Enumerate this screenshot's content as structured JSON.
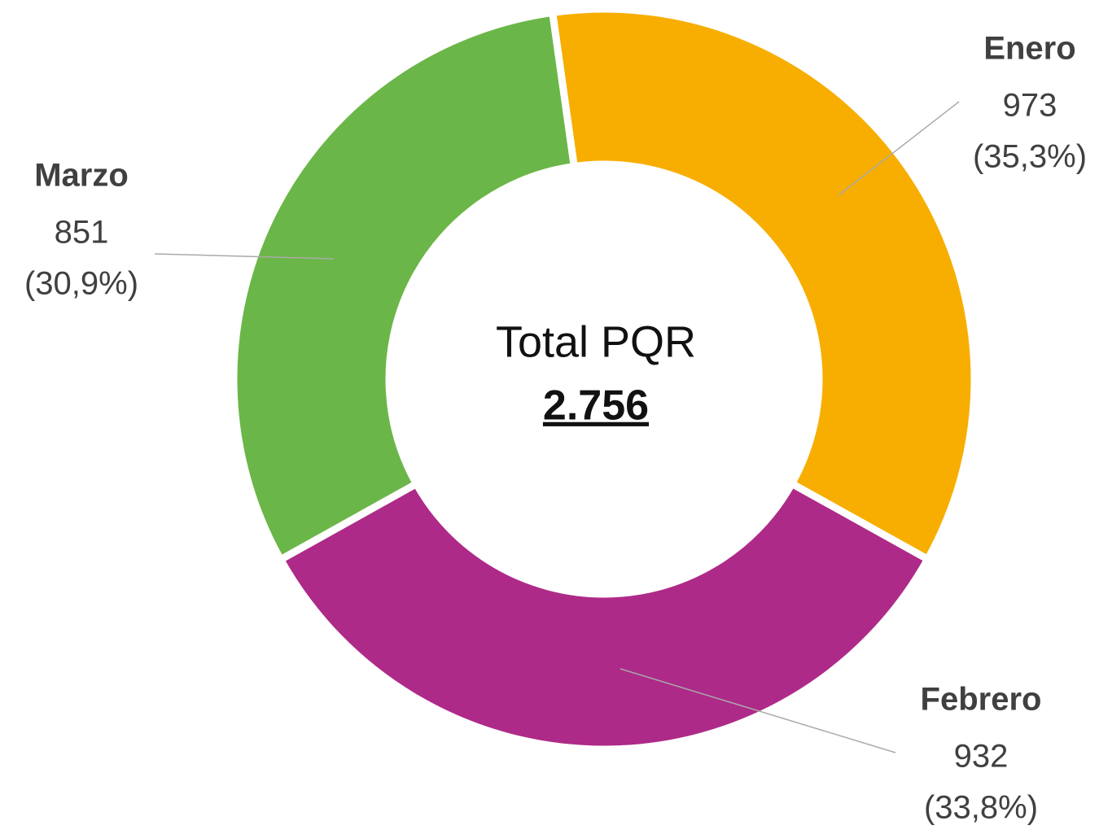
{
  "chart_data": {
    "type": "donut",
    "categories": [
      "Enero",
      "Febrero",
      "Marzo"
    ],
    "values": [
      973,
      932,
      851
    ],
    "percent_labels": [
      "(35,3%)",
      "(33,8%)",
      "(30,9%)"
    ],
    "colors": [
      "#f7ae00",
      "#ae2a88",
      "#6bb648"
    ],
    "center_label": "Total PQR",
    "total_label": "2.756"
  }
}
